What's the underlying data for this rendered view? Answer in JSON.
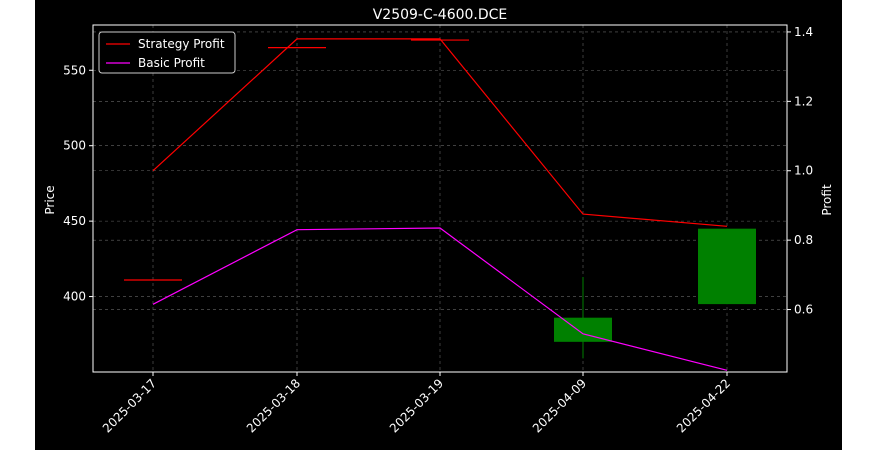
{
  "chart_data": {
    "type": "candlestick+line",
    "title": "V2509-C-4600.DCE",
    "categories": [
      "2025-03-17",
      "2025-03-18",
      "2025-03-19",
      "2025-04-09",
      "2025-04-22"
    ],
    "y_left": {
      "label": "Price",
      "ticks": [
        400,
        450,
        500,
        550
      ],
      "range": [
        350,
        580
      ]
    },
    "y_right": {
      "label": "Profit",
      "ticks": [
        0.6,
        0.8,
        1.0,
        1.2,
        1.4
      ],
      "range": [
        0.42,
        1.42
      ]
    },
    "candles": [
      {
        "x": "2025-03-17",
        "open": 411,
        "close": 411,
        "high": 411,
        "low": 411,
        "color": "#ff0000"
      },
      {
        "x": "2025-03-18",
        "open": 565,
        "close": 565,
        "high": 565,
        "low": 565,
        "color": "#ff0000"
      },
      {
        "x": "2025-03-19",
        "open": 570,
        "close": 570,
        "high": 570,
        "low": 570,
        "color": "#ff0000"
      },
      {
        "x": "2025-04-09",
        "open": 370,
        "close": 386,
        "high": 413,
        "low": 359,
        "color": "#008000"
      },
      {
        "x": "2025-04-22",
        "open": 395,
        "close": 445,
        "high": 445,
        "low": 395,
        "color": "#008000"
      }
    ],
    "series": [
      {
        "name": "Strategy Profit",
        "color": "#ff0000",
        "axis": "right",
        "values": [
          1.0,
          1.38,
          1.38,
          0.875,
          0.84
        ]
      },
      {
        "name": "Basic Profit",
        "color": "#ff00ff",
        "axis": "right",
        "values": [
          0.615,
          0.83,
          0.835,
          0.53,
          0.425
        ]
      }
    ],
    "grid": true,
    "legend_position": "top-left",
    "background": "#000000"
  }
}
